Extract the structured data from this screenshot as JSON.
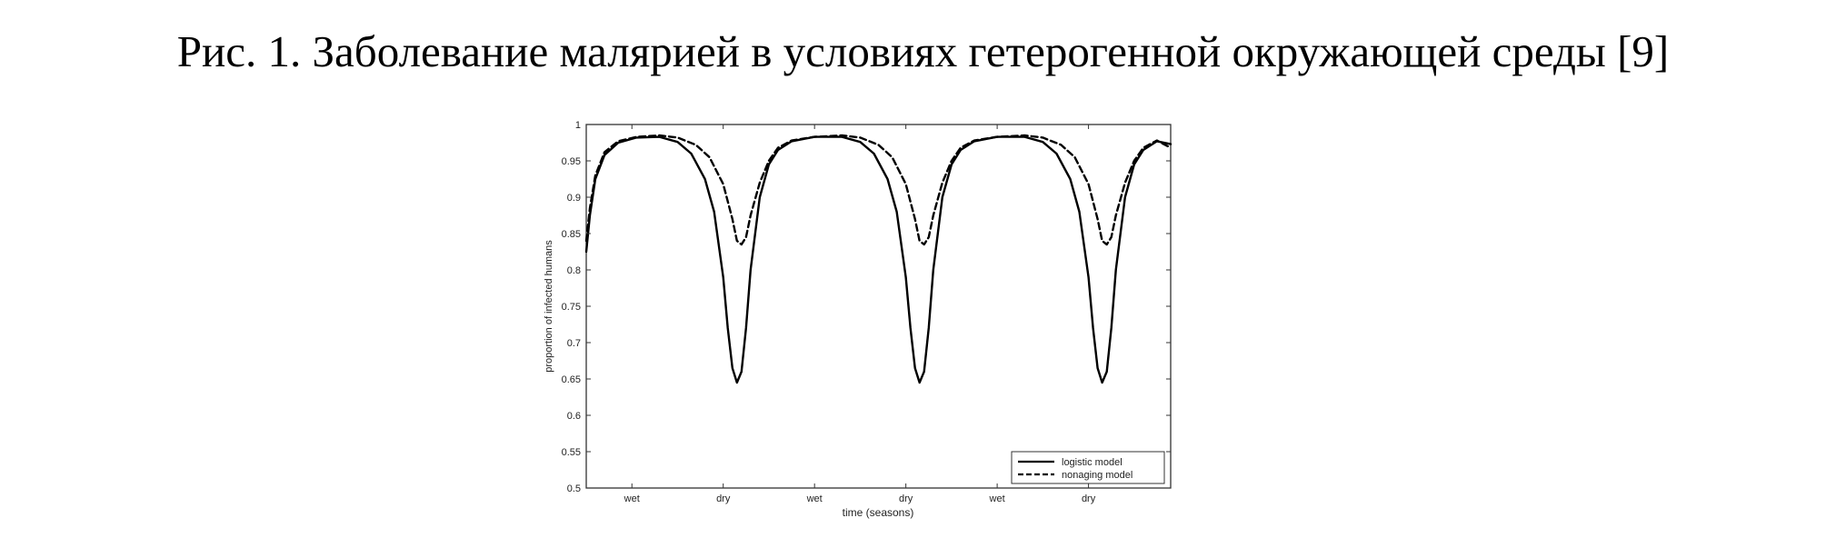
{
  "figure": {
    "caption": "Рис. 1. Заболевание малярией в условиях гетерогенной окружающей среды [9]"
  },
  "chart_data": {
    "type": "line",
    "title": "",
    "xlabel": "time (seasons)",
    "ylabel": "proportion of infected humans",
    "xlim": [
      0,
      6.4
    ],
    "ylim": [
      0.5,
      1
    ],
    "grid": false,
    "legend_position": "bottom-right",
    "x_ticks": [
      {
        "value": 0.5,
        "label": "wet"
      },
      {
        "value": 1.5,
        "label": "dry"
      },
      {
        "value": 2.5,
        "label": "wet"
      },
      {
        "value": 3.5,
        "label": "dry"
      },
      {
        "value": 4.5,
        "label": "wet"
      },
      {
        "value": 5.5,
        "label": "dry"
      }
    ],
    "y_ticks": [
      {
        "value": 0.5,
        "label": "0.5"
      },
      {
        "value": 0.55,
        "label": "0.55"
      },
      {
        "value": 0.6,
        "label": "0.6"
      },
      {
        "value": 0.65,
        "label": "0.65"
      },
      {
        "value": 0.7,
        "label": "0.7"
      },
      {
        "value": 0.75,
        "label": "0.75"
      },
      {
        "value": 0.8,
        "label": "0.8"
      },
      {
        "value": 0.85,
        "label": "0.85"
      },
      {
        "value": 0.9,
        "label": "0.9"
      },
      {
        "value": 0.95,
        "label": "0.95"
      },
      {
        "value": 1.0,
        "label": "1"
      }
    ],
    "series": [
      {
        "name": "logistic model",
        "style": "solid",
        "color": "#000000",
        "x": [
          0,
          0.04,
          0.1,
          0.2,
          0.35,
          0.55,
          0.8,
          1.0,
          1.15,
          1.3,
          1.4,
          1.5,
          1.55,
          1.6,
          1.65,
          1.7,
          1.75,
          1.8,
          1.9,
          2.0,
          2.1,
          2.25,
          2.5,
          2.8,
          3.0,
          3.15,
          3.3,
          3.4,
          3.5,
          3.55,
          3.6,
          3.65,
          3.7,
          3.75,
          3.8,
          3.9,
          4.0,
          4.1,
          4.25,
          4.5,
          4.8,
          5.0,
          5.15,
          5.3,
          5.4,
          5.5,
          5.55,
          5.6,
          5.65,
          5.7,
          5.75,
          5.8,
          5.9,
          6.0,
          6.1,
          6.25,
          6.4
        ],
        "y": [
          0.825,
          0.875,
          0.925,
          0.958,
          0.975,
          0.982,
          0.983,
          0.976,
          0.96,
          0.925,
          0.88,
          0.79,
          0.72,
          0.665,
          0.645,
          0.66,
          0.72,
          0.8,
          0.9,
          0.945,
          0.965,
          0.977,
          0.983,
          0.983,
          0.976,
          0.96,
          0.925,
          0.88,
          0.79,
          0.72,
          0.665,
          0.645,
          0.66,
          0.72,
          0.8,
          0.9,
          0.945,
          0.965,
          0.977,
          0.983,
          0.983,
          0.976,
          0.96,
          0.925,
          0.88,
          0.79,
          0.72,
          0.665,
          0.645,
          0.66,
          0.72,
          0.8,
          0.9,
          0.945,
          0.965,
          0.977,
          0.973
        ]
      },
      {
        "name": "nonaging model",
        "style": "dashed",
        "color": "#000000",
        "x": [
          0,
          0.04,
          0.1,
          0.2,
          0.35,
          0.55,
          0.8,
          1.0,
          1.2,
          1.35,
          1.5,
          1.6,
          1.65,
          1.7,
          1.75,
          1.8,
          1.9,
          2.0,
          2.1,
          2.25,
          2.5,
          2.8,
          3.0,
          3.2,
          3.35,
          3.5,
          3.6,
          3.65,
          3.7,
          3.75,
          3.8,
          3.9,
          4.0,
          4.1,
          4.25,
          4.5,
          4.8,
          5.0,
          5.2,
          5.35,
          5.5,
          5.6,
          5.65,
          5.7,
          5.75,
          5.8,
          5.9,
          6.0,
          6.1,
          6.25,
          6.4
        ],
        "y": [
          0.84,
          0.885,
          0.93,
          0.962,
          0.977,
          0.983,
          0.985,
          0.982,
          0.972,
          0.955,
          0.918,
          0.87,
          0.84,
          0.835,
          0.845,
          0.875,
          0.92,
          0.95,
          0.968,
          0.978,
          0.983,
          0.985,
          0.982,
          0.972,
          0.955,
          0.918,
          0.87,
          0.84,
          0.835,
          0.845,
          0.875,
          0.92,
          0.95,
          0.968,
          0.978,
          0.983,
          0.985,
          0.982,
          0.972,
          0.955,
          0.918,
          0.87,
          0.84,
          0.835,
          0.845,
          0.875,
          0.92,
          0.95,
          0.968,
          0.978,
          0.968
        ]
      }
    ]
  }
}
